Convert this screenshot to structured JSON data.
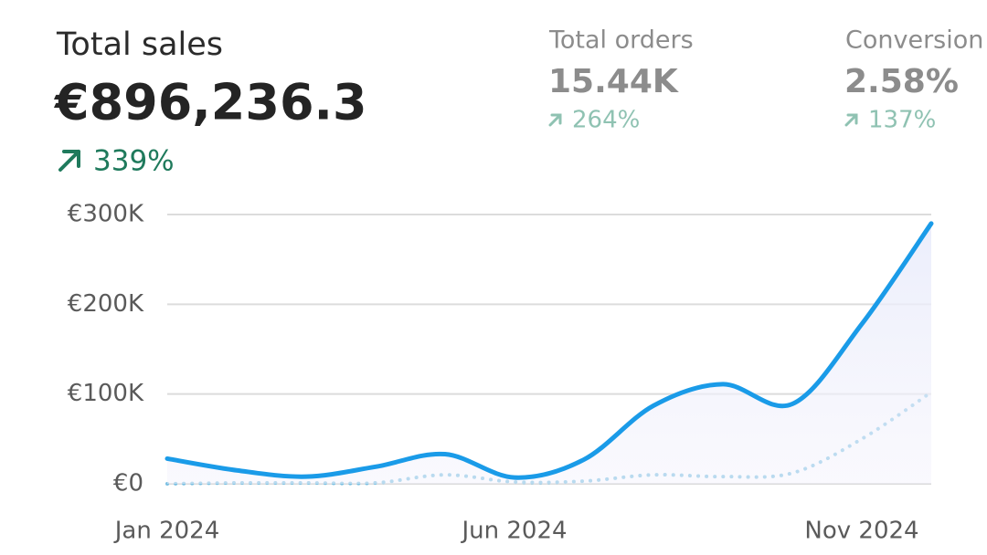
{
  "header": {
    "main": {
      "title": "Total sales",
      "value": "€896,236.3",
      "change": "339%"
    },
    "secondary": [
      {
        "title": "Total orders",
        "value": "15.44K",
        "change": "264%"
      },
      {
        "title": "Conversion",
        "value": "2.58%",
        "change": "137%"
      }
    ]
  },
  "chart_data": {
    "type": "line",
    "categories": [
      "Jan 2024",
      null,
      null,
      null,
      null,
      "Jun 2024",
      null,
      null,
      null,
      null,
      "Nov 2024",
      null
    ],
    "series": [
      {
        "color": "#1a9be8",
        "dash": "solid",
        "area": true,
        "values": [
          28000,
          15000,
          8000,
          19000,
          33000,
          7000,
          27000,
          87000,
          111000,
          89000,
          178000,
          290000
        ]
      },
      {
        "color": "#7cc0e2",
        "dash": "dotted",
        "area": false,
        "values": [
          0,
          1000,
          1000,
          1000,
          10000,
          2000,
          3000,
          10000,
          8000,
          12000,
          50000,
          102000
        ]
      }
    ],
    "ylim": [
      0,
      300000
    ],
    "yticks": [
      {
        "value": 0,
        "label": "€0"
      },
      {
        "value": 100000,
        "label": "€100K"
      },
      {
        "value": 200000,
        "label": "€200K"
      },
      {
        "value": 300000,
        "label": "€300K"
      }
    ],
    "grid": true
  }
}
